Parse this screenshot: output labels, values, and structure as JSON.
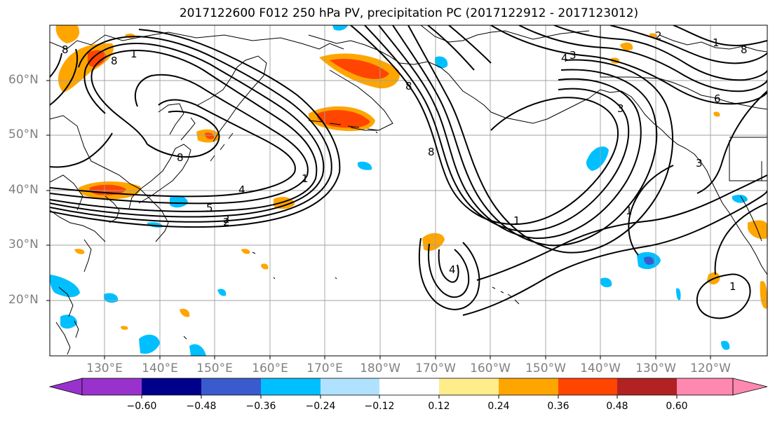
{
  "title": "2017122600 F012 250 hPa PV, precipitation PC (2017122912 - 2017123012)",
  "map": {
    "lat_labels": [
      "60°N",
      "50°N",
      "40°N",
      "30°N",
      "20°N"
    ],
    "lon_labels": [
      "130°E",
      "140°E",
      "150°E",
      "160°E",
      "170°E",
      "180°W",
      "170°W",
      "160°W",
      "150°W",
      "140°W",
      "130°W",
      "120°W"
    ],
    "contour_labels": [
      "8",
      "1",
      "8",
      "5",
      "2",
      "4",
      "1",
      "8",
      "8",
      "2",
      "4",
      "3",
      "3",
      "6",
      "1",
      "1",
      "4",
      "1",
      "3",
      "8",
      "1",
      "2",
      "8"
    ],
    "colors": {
      "land_outline": "#000000",
      "grid": "#a0a0a0",
      "contour": "#000000"
    }
  },
  "colorbar": {
    "tick_labels": [
      "−0.60",
      "−0.48",
      "−0.36",
      "−0.24",
      "−0.12",
      "0.12",
      "0.24",
      "0.36",
      "0.48",
      "0.60"
    ],
    "colors": [
      "#9932cc",
      "#00008b",
      "#3a5bcd",
      "#00bfff",
      "#b0e2ff",
      "#ffffff",
      "#ffec8b",
      "#ffa500",
      "#ff4500",
      "#b22222",
      "#ff88b0"
    ]
  }
}
